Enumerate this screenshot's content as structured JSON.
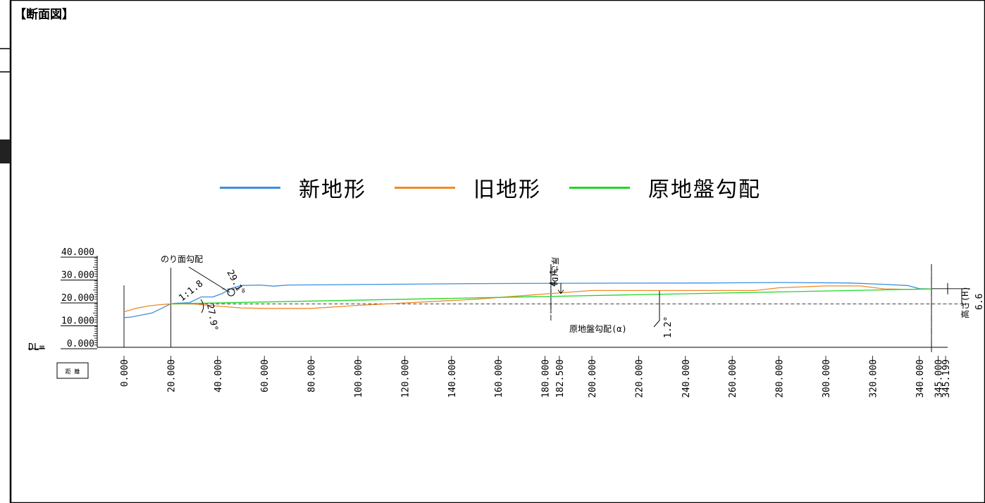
{
  "title": "【断面図】",
  "legend": {
    "items": [
      {
        "label": "新地形",
        "color": "#3b8fe0"
      },
      {
        "label": "旧地形",
        "color": "#f08a28"
      },
      {
        "label": "原地盤勾配",
        "color": "#22d62a"
      }
    ]
  },
  "chart_data": {
    "type": "line",
    "y_axis": {
      "range": [
        0,
        40
      ],
      "tick_labels": [
        "40.000",
        "30.000",
        "20.000",
        "10.000",
        "0.000"
      ],
      "tick_values": [
        40,
        30,
        20,
        10,
        0
      ],
      "datum_label": "DL="
    },
    "x_axis": {
      "row_label": "距 離",
      "range": [
        0,
        345.199
      ],
      "stations": [
        {
          "value": 0,
          "label": "0.000"
        },
        {
          "value": 20,
          "label": "20.000"
        },
        {
          "value": 40,
          "label": "40.000"
        },
        {
          "value": 60,
          "label": "60.000"
        },
        {
          "value": 80,
          "label": "80.000"
        },
        {
          "value": 100,
          "label": "100.000"
        },
        {
          "value": 120,
          "label": "120.000"
        },
        {
          "value": 140,
          "label": "140.000"
        },
        {
          "value": 160,
          "label": "160.000"
        },
        {
          "value": 180,
          "label": "180.000"
        },
        {
          "value": 182.5,
          "label": "182.500"
        },
        {
          "value": 200,
          "label": "200.000"
        },
        {
          "value": 220,
          "label": "220.000"
        },
        {
          "value": 240,
          "label": "240.000"
        },
        {
          "value": 260,
          "label": "260.000"
        },
        {
          "value": 280,
          "label": "280.000"
        },
        {
          "value": 300,
          "label": "300.000"
        },
        {
          "value": 320,
          "label": "320.000"
        },
        {
          "value": 340,
          "label": "340.000"
        },
        {
          "value": 345,
          "label": "345.000"
        },
        {
          "value": 345.199,
          "label": "345.199"
        }
      ]
    },
    "series": [
      {
        "name": "新地形",
        "color": "#3b8fe0",
        "points": [
          [
            0,
            13
          ],
          [
            3,
            13.2
          ],
          [
            7,
            14
          ],
          [
            12,
            15
          ],
          [
            16,
            17
          ],
          [
            20,
            19
          ],
          [
            23,
            19.3
          ],
          [
            28,
            19.5
          ],
          [
            33,
            22
          ],
          [
            38,
            22
          ],
          [
            42,
            23.5
          ],
          [
            46,
            25.8
          ],
          [
            50,
            27
          ],
          [
            58,
            27.2
          ],
          [
            64,
            26.7
          ],
          [
            70,
            27.2
          ],
          [
            100,
            27.4
          ],
          [
            150,
            27.8
          ],
          [
            200,
            28
          ],
          [
            250,
            28.1
          ],
          [
            280,
            28.3
          ],
          [
            310,
            28.1
          ],
          [
            325,
            27.5
          ],
          [
            335,
            27
          ],
          [
            340,
            25.6
          ],
          [
            345.199,
            25.5
          ]
        ]
      },
      {
        "name": "旧地形",
        "color": "#f08a28",
        "points": [
          [
            0,
            15.5
          ],
          [
            5,
            17
          ],
          [
            10,
            18
          ],
          [
            15,
            18.6
          ],
          [
            20,
            19
          ],
          [
            30,
            18.9
          ],
          [
            40,
            18
          ],
          [
            50,
            17.2
          ],
          [
            60,
            17
          ],
          [
            80,
            17
          ],
          [
            100,
            18.3
          ],
          [
            150,
            21
          ],
          [
            182.5,
            23.5
          ],
          [
            200,
            24.8
          ],
          [
            230,
            24.8
          ],
          [
            270,
            24.8
          ],
          [
            280,
            26
          ],
          [
            300,
            26.8
          ],
          [
            315,
            26.8
          ],
          [
            325,
            25.5
          ],
          [
            335,
            25.3
          ],
          [
            345.199,
            25.5
          ]
        ]
      },
      {
        "name": "原地盤勾配",
        "color": "#22d62a",
        "points": [
          [
            20,
            19
          ],
          [
            345.199,
            25.5
          ]
        ]
      }
    ],
    "annotations": {
      "slope_label": "のり面勾配",
      "slope_ratio": "1:1.8",
      "slope_angle": "27.9°",
      "slope_angle_top": "29.1°",
      "thickness_label": "厚さ(D)",
      "thickness_value": "4.4",
      "ground_slope_label": "原地盤勾配(α)",
      "ground_slope_value": "1.2°",
      "height_label": "高さ(H)",
      "height_value": "6.6"
    }
  }
}
